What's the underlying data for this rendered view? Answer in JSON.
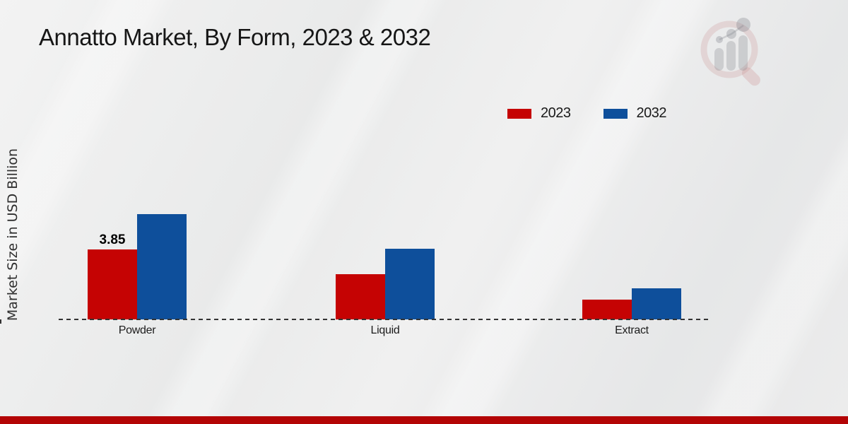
{
  "chart_data": {
    "type": "bar",
    "title": "Annatto Market, By Form, 2023 & 2032",
    "ylabel": "Market Size in USD Billion",
    "xlabel": "",
    "categories": [
      "Powder",
      "Liquid",
      "Extract"
    ],
    "series": [
      {
        "name": "2023",
        "color": "#c50303",
        "values": [
          3.85,
          2.5,
          1.1
        ]
      },
      {
        "name": "2032",
        "color": "#0e4f9b",
        "values": [
          5.8,
          3.9,
          1.7
        ]
      }
    ],
    "data_labels": [
      {
        "series_index": 0,
        "category_index": 0,
        "text": "3.85"
      }
    ],
    "ylim": [
      0,
      6.2
    ],
    "grid": false,
    "axis_style": "dashed-baseline-only",
    "legend_position": "top-right"
  },
  "branding": {
    "logo_icon": "magnifier-bar-chart-logo",
    "footer_bar_color": "#b30405"
  }
}
